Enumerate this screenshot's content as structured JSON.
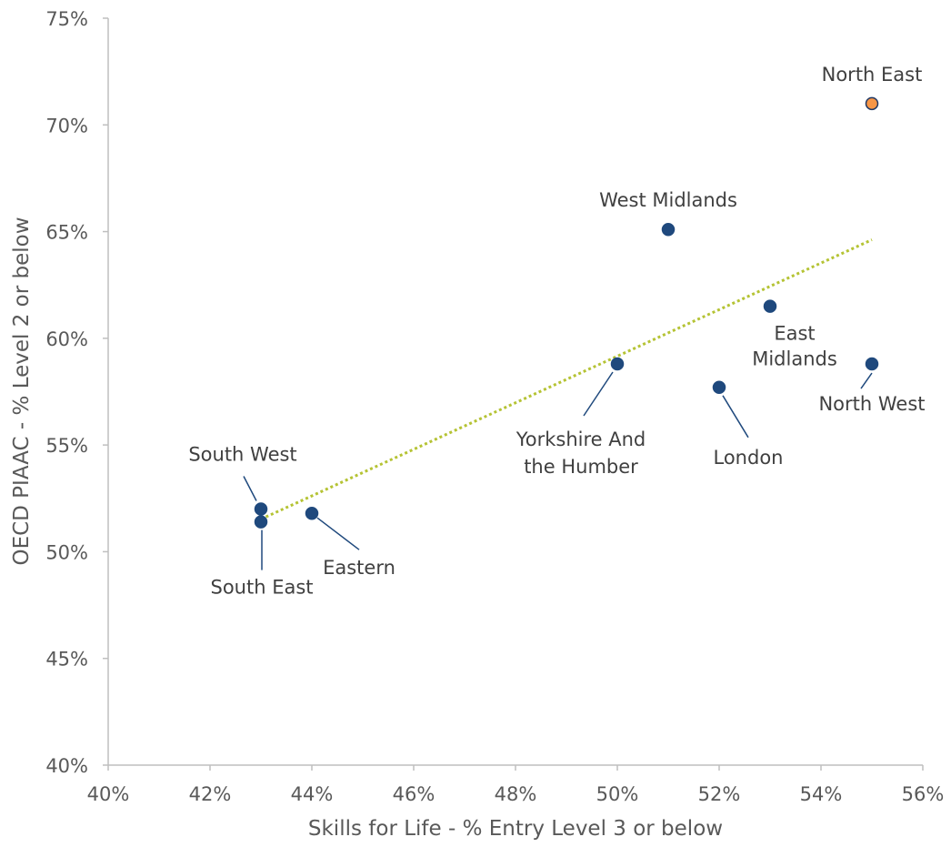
{
  "chart_data": {
    "type": "scatter",
    "title": "",
    "xlabel": "Skills for Life - % Entry Level 3 or below",
    "ylabel": "OECD PIAAC - % Level 2 or below",
    "xlim": [
      40,
      56
    ],
    "ylim": [
      40,
      75
    ],
    "x_ticks": [
      40,
      42,
      44,
      46,
      48,
      50,
      52,
      54,
      56
    ],
    "y_ticks": [
      40,
      45,
      50,
      55,
      60,
      65,
      70,
      75
    ],
    "x_tick_labels": [
      "40%",
      "42%",
      "44%",
      "46%",
      "48%",
      "50%",
      "52%",
      "54%",
      "56%"
    ],
    "y_tick_labels": [
      "40%",
      "45%",
      "50%",
      "55%",
      "60%",
      "65%",
      "70%",
      "75%"
    ],
    "grid": false,
    "legend": "none",
    "colors": {
      "point": "#1F497D",
      "highlight": "#F79646",
      "trendline": "#B5C334",
      "axis": "#BFBFBF"
    },
    "points": [
      {
        "label": "North East",
        "x": 55,
        "y": 71.0,
        "highlight": true
      },
      {
        "label": "West Midlands",
        "x": 51,
        "y": 65.1,
        "highlight": false
      },
      {
        "label": "East Midlands",
        "x": 53,
        "y": 61.5,
        "highlight": false
      },
      {
        "label": "North West",
        "x": 55,
        "y": 58.8,
        "highlight": false
      },
      {
        "label": "Yorkshire And the Humber",
        "x": 50,
        "y": 58.8,
        "highlight": false
      },
      {
        "label": "London",
        "x": 52,
        "y": 57.7,
        "highlight": false
      },
      {
        "label": "South West",
        "x": 43,
        "y": 52.0,
        "highlight": false
      },
      {
        "label": "Eastern",
        "x": 44,
        "y": 51.8,
        "highlight": false
      },
      {
        "label": "South East",
        "x": 43,
        "y": 51.4,
        "highlight": false
      }
    ],
    "trendline": {
      "type": "linear",
      "style": "dotted",
      "x_range": [
        43,
        55
      ]
    }
  }
}
